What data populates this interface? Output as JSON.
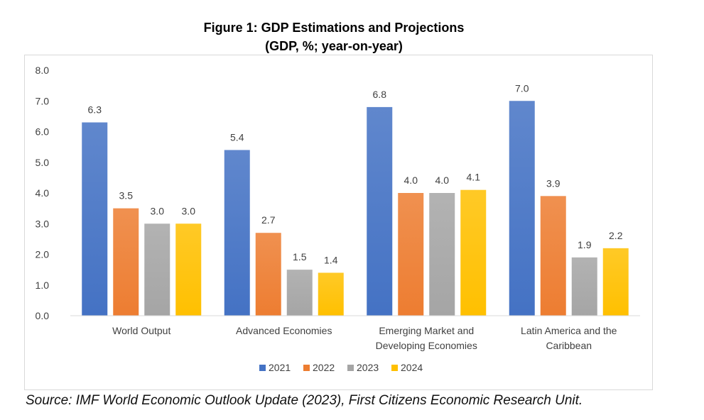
{
  "chart_data": {
    "type": "bar",
    "title": "Figure 1: GDP Estimations and Projections",
    "subtitle": "(GDP, %; year-on-year)",
    "categories": [
      [
        "World Output"
      ],
      [
        "Advanced Economies"
      ],
      [
        "Emerging Market and",
        "Developing Economies"
      ],
      [
        "Latin America and the",
        "Caribbean"
      ]
    ],
    "series": [
      {
        "name": "2021",
        "color": "#4472c4",
        "values": [
          6.3,
          5.4,
          6.8,
          7.0
        ]
      },
      {
        "name": "2022",
        "color": "#ed7d31",
        "values": [
          3.5,
          2.7,
          4.0,
          3.9
        ]
      },
      {
        "name": "2023",
        "color": "#a5a5a5",
        "values": [
          3.0,
          1.5,
          4.0,
          1.9
        ]
      },
      {
        "name": "2024",
        "color": "#ffc000",
        "values": [
          3.0,
          1.4,
          4.1,
          2.2
        ]
      }
    ],
    "y_ticks": [
      "0.0",
      "1.0",
      "2.0",
      "3.0",
      "4.0",
      "5.0",
      "6.0",
      "7.0",
      "8.0"
    ],
    "ylim": [
      0,
      8
    ],
    "xlabel": "",
    "ylabel": "",
    "grid": false,
    "legend_position": "bottom"
  },
  "source": "Source: IMF World Economic Outlook Update (2023), First Citizens Economic Research Unit."
}
